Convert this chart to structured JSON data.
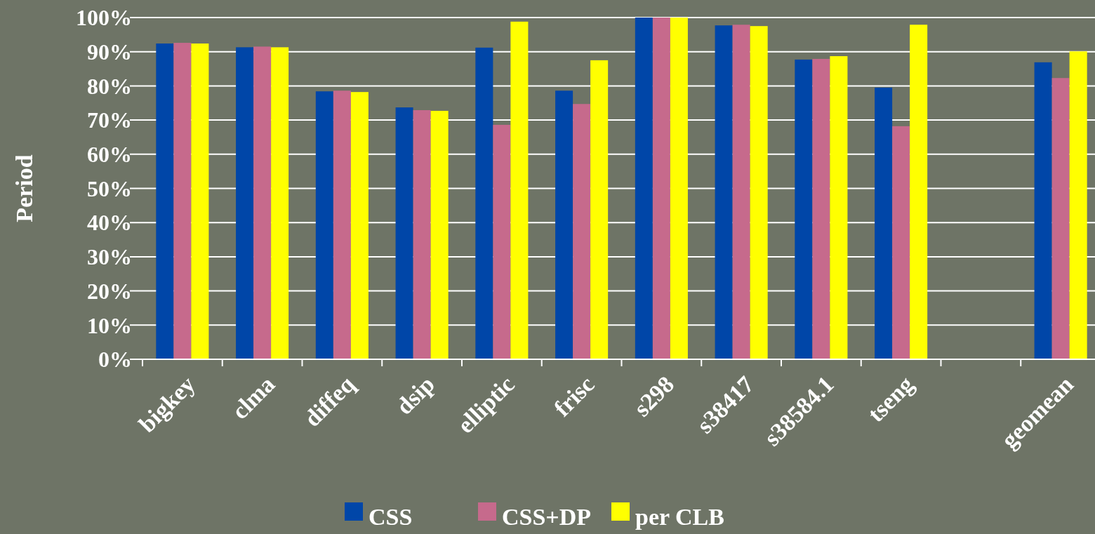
{
  "chart_data": {
    "type": "bar",
    "ylabel": "Period",
    "categories": [
      "bigkey",
      "clma",
      "diffeq",
      "dsip",
      "elliptic",
      "frisc",
      "s298",
      "s38417",
      "s38584.1",
      "tseng",
      null,
      "geomean"
    ],
    "series": [
      {
        "name": "CSS",
        "color": "#0046a8",
        "values": [
          92.4,
          91.3,
          78.4,
          73.7,
          91.2,
          78.6,
          100,
          97.7,
          87.7,
          79.5,
          null,
          86.9
        ]
      },
      {
        "name": "CSS+DP",
        "color": "#c66a8c",
        "values": [
          92.6,
          91.5,
          78.6,
          72.9,
          68.6,
          74.7,
          100,
          97.9,
          87.9,
          68.2,
          null,
          82.3
        ]
      },
      {
        "name": "per CLB",
        "color": "#ffff00",
        "values": [
          92.4,
          91.3,
          78.2,
          72.7,
          98.8,
          87.5,
          100,
          97.5,
          88.7,
          97.9,
          null,
          90.1
        ]
      }
    ],
    "ylim": [
      0,
      100
    ],
    "yticks": [
      {
        "value": 0,
        "label": "0%"
      },
      {
        "value": 10,
        "label": "10%"
      },
      {
        "value": 20,
        "label": "20%"
      },
      {
        "value": 30,
        "label": "30%"
      },
      {
        "value": 40,
        "label": "40%"
      },
      {
        "value": 50,
        "label": "50%"
      },
      {
        "value": 60,
        "label": "60%"
      },
      {
        "value": 70,
        "label": "70%"
      },
      {
        "value": 80,
        "label": "80%"
      },
      {
        "value": 90,
        "label": "90%"
      },
      {
        "value": 100,
        "label": "100%"
      }
    ],
    "grid": "y",
    "legend": "bottom"
  }
}
